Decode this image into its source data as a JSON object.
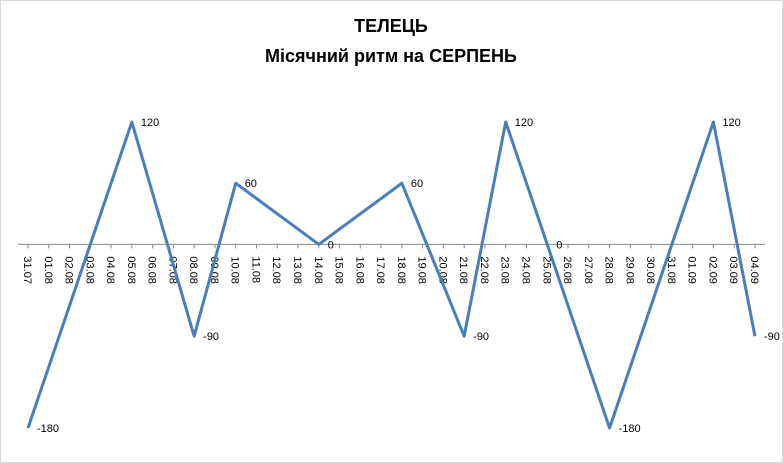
{
  "chart_data": {
    "type": "line",
    "title": "ТЕЛЕЦЬ",
    "subtitle": "Місячний ритм на СЕРПЕНЬ",
    "categories": [
      "31.07",
      "01.08",
      "02.08",
      "03.08",
      "04.08",
      "05.08",
      "06.08",
      "07.08",
      "08.08",
      "09.08",
      "10.08",
      "11.08",
      "12.08",
      "13.08",
      "14.08",
      "15.08",
      "16.08",
      "17.08",
      "18.08",
      "19.08",
      "20.08",
      "21.08",
      "22.08",
      "23.08",
      "24.08",
      "25.08",
      "26.08",
      "27.08",
      "28.08",
      "29.08",
      "30.08",
      "31.08",
      "01.09",
      "02.09",
      "03.09",
      "04.09"
    ],
    "series": [
      {
        "color": "#4a7ebb",
        "values": [
          -180,
          -120,
          -60,
          0,
          60,
          120,
          50,
          -20,
          -90,
          -15,
          60,
          45,
          30,
          15,
          0,
          15,
          30,
          45,
          60,
          10,
          -40,
          -90,
          15,
          120,
          60,
          0,
          -60,
          -120,
          -180,
          -120,
          -60,
          0,
          60,
          120,
          15,
          -90
        ],
        "value_labels": [
          "-180",
          null,
          null,
          null,
          null,
          "120",
          null,
          null,
          "-90",
          null,
          "60",
          null,
          null,
          null,
          "0",
          null,
          null,
          null,
          "60",
          null,
          null,
          "-90",
          null,
          "120",
          null,
          "0",
          null,
          null,
          "-180",
          null,
          null,
          null,
          null,
          "120",
          null,
          "-90"
        ]
      }
    ],
    "ylim": [
      -180,
      120
    ]
  }
}
